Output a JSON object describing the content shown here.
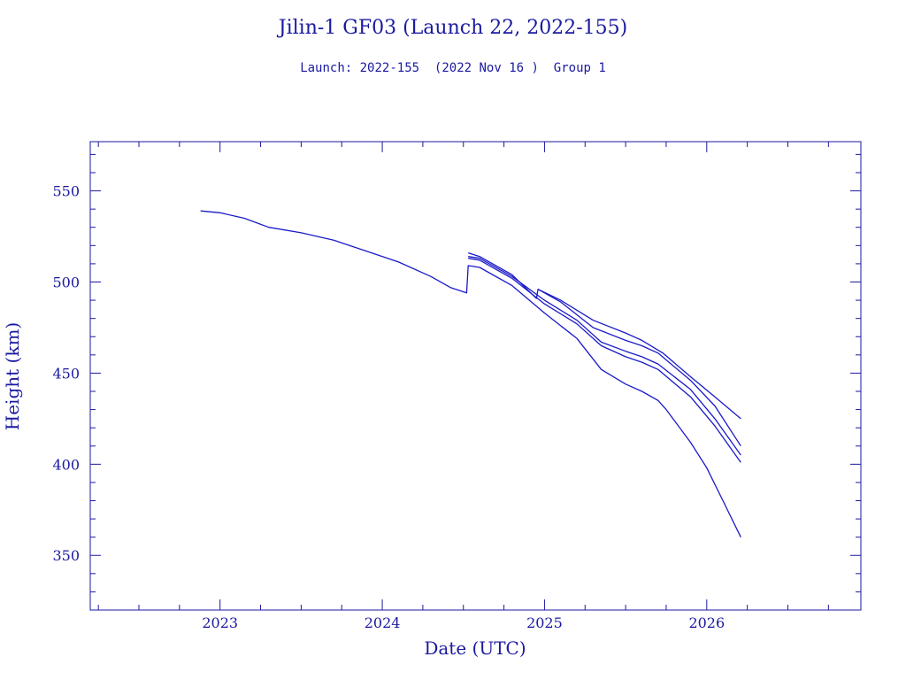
{
  "chart_data": {
    "type": "line",
    "title": "Jilin-1 GF03 (Launch 22, 2022-155)",
    "subtitle": "Launch: 2022-155  (2022 Nov 16 )  Group 1",
    "xlabel": "Date (UTC)",
    "ylabel": "Height (km)",
    "xlim": [
      2022.2,
      2026.95
    ],
    "ylim": [
      320,
      577
    ],
    "x_ticks": [
      2023,
      2024,
      2025,
      2026
    ],
    "x_tick_labels": [
      "2023",
      "2024",
      "2025",
      "2026"
    ],
    "y_ticks": [
      350,
      400,
      450,
      500,
      550
    ],
    "y_tick_labels": [
      "350",
      "400",
      "450",
      "500",
      "550"
    ],
    "grid": false,
    "line_color": "#1a1ac8",
    "text_color": "#1a1aa0",
    "series": [
      {
        "values": [
          [
            2022.88,
            539
          ],
          [
            2023.0,
            538
          ],
          [
            2023.15,
            535
          ],
          [
            2023.3,
            530
          ],
          [
            2023.5,
            527
          ],
          [
            2023.7,
            523
          ],
          [
            2023.9,
            517
          ],
          [
            2024.1,
            511
          ],
          [
            2024.3,
            503
          ],
          [
            2024.42,
            497
          ],
          [
            2024.52,
            494
          ],
          [
            2024.53,
            509
          ],
          [
            2024.6,
            508
          ],
          [
            2024.8,
            498
          ],
          [
            2025.0,
            483
          ],
          [
            2025.2,
            469
          ],
          [
            2025.35,
            452
          ],
          [
            2025.5,
            444
          ],
          [
            2025.6,
            440
          ],
          [
            2025.7,
            435
          ],
          [
            2025.75,
            430
          ],
          [
            2025.9,
            412
          ],
          [
            2026.0,
            398
          ],
          [
            2026.1,
            380
          ],
          [
            2026.21,
            360
          ]
        ]
      },
      {
        "values": [
          [
            2024.53,
            513
          ],
          [
            2024.6,
            512
          ],
          [
            2024.8,
            502
          ],
          [
            2025.0,
            488
          ],
          [
            2025.2,
            477
          ],
          [
            2025.35,
            465
          ],
          [
            2025.5,
            459
          ],
          [
            2025.6,
            456
          ],
          [
            2025.7,
            452
          ],
          [
            2025.9,
            437
          ],
          [
            2026.05,
            421
          ],
          [
            2026.21,
            401
          ]
        ]
      },
      {
        "values": [
          [
            2024.53,
            514
          ],
          [
            2024.6,
            513
          ],
          [
            2024.8,
            503
          ],
          [
            2025.0,
            490
          ],
          [
            2025.2,
            479
          ],
          [
            2025.35,
            467
          ],
          [
            2025.5,
            462
          ],
          [
            2025.6,
            459
          ],
          [
            2025.7,
            455
          ],
          [
            2025.9,
            441
          ],
          [
            2026.05,
            425
          ],
          [
            2026.21,
            405
          ]
        ]
      },
      {
        "values": [
          [
            2024.53,
            516
          ],
          [
            2024.6,
            514
          ],
          [
            2024.8,
            504
          ],
          [
            2024.95,
            491
          ],
          [
            2024.96,
            496
          ],
          [
            2025.1,
            489
          ],
          [
            2025.3,
            475
          ],
          [
            2025.5,
            468
          ],
          [
            2025.6,
            465
          ],
          [
            2025.7,
            461
          ],
          [
            2025.9,
            446
          ],
          [
            2026.05,
            432
          ],
          [
            2026.21,
            410
          ]
        ]
      },
      {
        "values": [
          [
            2024.96,
            496
          ],
          [
            2025.1,
            490
          ],
          [
            2025.3,
            479
          ],
          [
            2025.5,
            472
          ],
          [
            2025.6,
            468
          ],
          [
            2025.73,
            461
          ],
          [
            2025.9,
            448
          ],
          [
            2026.05,
            437
          ],
          [
            2026.21,
            425
          ]
        ]
      }
    ]
  }
}
